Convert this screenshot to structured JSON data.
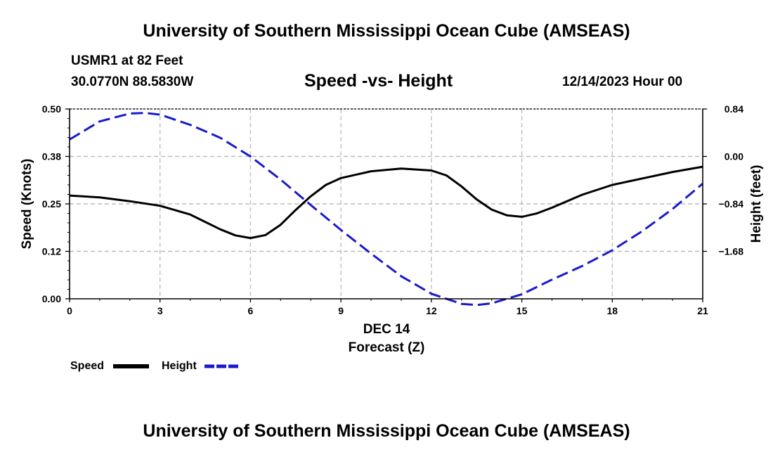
{
  "header": {
    "title_top": "University of Southern Mississippi Ocean Cube (AMSEAS)",
    "station": "USMR1 at 82 Feet",
    "coords": "30.0770N  88.5830W",
    "date_hour": "12/14/2023 Hour 00",
    "title_bottom": "University of Southern Mississippi Ocean Cube (AMSEAS)"
  },
  "colors": {
    "speed": "#000000",
    "height": "#1a1acc",
    "grid": "#bbbbbb"
  },
  "chart_data": {
    "type": "line",
    "title": "Speed -vs- Height",
    "xlabel": "Forecast (Z)",
    "xlabel_date": "DEC 14",
    "ylabel": "Speed (Knots)",
    "ylabel_right": "Height (feet)",
    "xlim": [
      0,
      21
    ],
    "ylim": [
      0,
      0.5
    ],
    "ylim_right": [
      -2.52,
      0.84
    ],
    "x_ticks": [
      0,
      3,
      6,
      9,
      12,
      15,
      18,
      21
    ],
    "x_tick_labels": [
      "0",
      "3",
      "6",
      "9",
      "12",
      "15",
      "18",
      "21"
    ],
    "y_ticks": [
      0,
      0.125,
      0.25,
      0.375,
      0.5
    ],
    "y_tick_labels": [
      "0.00",
      "0.12",
      "0.25",
      "0.38",
      "0.50"
    ],
    "y_right_ticks": [
      0.84,
      0,
      -0.84,
      -1.68
    ],
    "y_right_tick_labels": [
      "0.84",
      "0.00",
      "-0.84",
      "-1.68"
    ],
    "grid": true,
    "legend_position": "bottom-left",
    "series": [
      {
        "name": "Speed",
        "axis": "left",
        "style": "solid",
        "x": [
          0,
          1,
          2,
          3,
          4,
          5,
          5.5,
          6,
          6.5,
          7,
          7.5,
          8,
          8.5,
          9,
          10,
          11,
          12,
          12.5,
          13,
          13.5,
          14,
          14.5,
          15,
          15.5,
          16,
          17,
          18,
          19,
          20,
          21
        ],
        "values": [
          0.272,
          0.267,
          0.257,
          0.245,
          0.222,
          0.183,
          0.167,
          0.16,
          0.168,
          0.195,
          0.234,
          0.27,
          0.3,
          0.318,
          0.336,
          0.343,
          0.338,
          0.325,
          0.296,
          0.262,
          0.235,
          0.22,
          0.216,
          0.225,
          0.24,
          0.274,
          0.3,
          0.317,
          0.334,
          0.348
        ]
      },
      {
        "name": "Height",
        "axis": "right",
        "style": "dashed",
        "x": [
          0,
          1,
          2,
          2.5,
          3,
          4,
          5,
          6,
          7,
          8,
          9,
          10,
          11,
          12,
          13,
          13.5,
          14,
          15,
          16,
          17,
          18,
          19,
          20,
          21
        ],
        "values": [
          0.3,
          0.62,
          0.76,
          0.77,
          0.74,
          0.56,
          0.33,
          0.0,
          -0.41,
          -0.86,
          -1.3,
          -1.72,
          -2.12,
          -2.43,
          -2.61,
          -2.63,
          -2.6,
          -2.44,
          -2.18,
          -1.94,
          -1.66,
          -1.32,
          -0.93,
          -0.48
        ]
      }
    ]
  }
}
